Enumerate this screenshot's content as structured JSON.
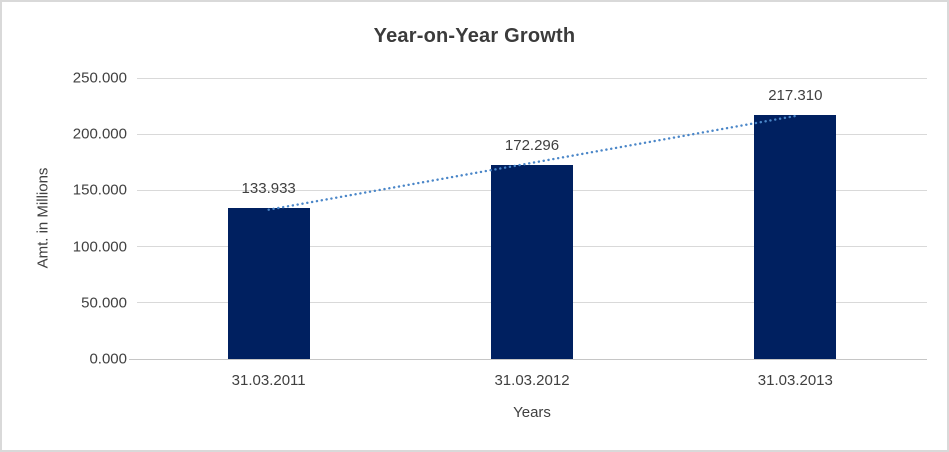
{
  "chart_data": {
    "type": "bar",
    "title": "Year-on-Year Growth",
    "xlabel": "Years",
    "ylabel": "Amt. in Millions",
    "categories": [
      "31.03.2011",
      "31.03.2012",
      "31.03.2013"
    ],
    "values": [
      133.933,
      172.296,
      217.31
    ],
    "bar_labels": [
      "133.933",
      "172.296",
      "217.310"
    ],
    "ylim": [
      0,
      250
    ],
    "y_ticks": [
      {
        "value": 0,
        "label": "0.000"
      },
      {
        "value": 50,
        "label": "50.000"
      },
      {
        "value": 100,
        "label": "100.000"
      },
      {
        "value": 150,
        "label": "150.000"
      },
      {
        "value": 200,
        "label": "200.000"
      },
      {
        "value": 250,
        "label": "250.000"
      }
    ],
    "grid": true,
    "legend": "none",
    "trendline": {
      "type": "linear",
      "style": "dotted"
    },
    "colors": {
      "bar": "#002060",
      "trendline": "#4a86c8",
      "gridline": "#d9d9d9",
      "axis_line": "#c6c6c6",
      "text": "#404040",
      "title_text": "#3b3b3b",
      "border": "#d9d9d9",
      "background": "#ffffff"
    }
  }
}
